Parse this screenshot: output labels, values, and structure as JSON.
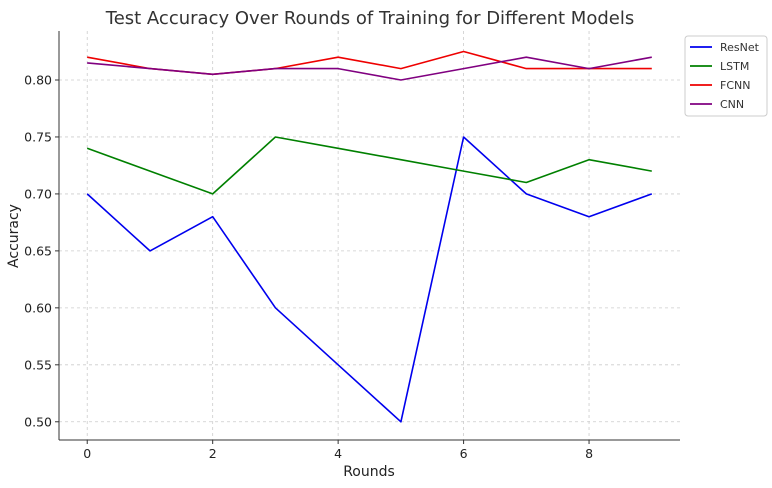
{
  "chart_data": {
    "type": "line",
    "title": "Test Accuracy Over Rounds of Training for Different Models",
    "xlabel": "Rounds",
    "ylabel": "Accuracy",
    "x": [
      0,
      1,
      2,
      3,
      4,
      5,
      6,
      7,
      8,
      9
    ],
    "xlim": [
      -0.45,
      9.45
    ],
    "ylim": [
      0.484,
      0.843
    ],
    "xticks": [
      0,
      2,
      4,
      6,
      8
    ],
    "yticks": [
      0.5,
      0.55,
      0.6,
      0.65,
      0.7,
      0.75,
      0.8
    ],
    "xtick_labels": [
      "0",
      "2",
      "4",
      "6",
      "8"
    ],
    "ytick_labels": [
      "0.50",
      "0.55",
      "0.60",
      "0.65",
      "0.70",
      "0.75",
      "0.80"
    ],
    "grid": true,
    "legend_position": "top-right-outside",
    "series": [
      {
        "name": "ResNet",
        "color": "#0000ee",
        "values": [
          0.7,
          0.65,
          0.68,
          0.6,
          0.55,
          0.5,
          0.75,
          0.7,
          0.68,
          0.7
        ]
      },
      {
        "name": "LSTM",
        "color": "#008000",
        "values": [
          0.74,
          0.72,
          0.7,
          0.75,
          0.74,
          0.73,
          0.72,
          0.71,
          0.73,
          0.72
        ]
      },
      {
        "name": "FCNN",
        "color": "#ee0000",
        "values": [
          0.82,
          0.81,
          0.805,
          0.81,
          0.82,
          0.81,
          0.825,
          0.81,
          0.81,
          0.81
        ]
      },
      {
        "name": "CNN",
        "color": "#800080",
        "values": [
          0.815,
          0.81,
          0.805,
          0.81,
          0.81,
          0.8,
          0.81,
          0.82,
          0.81,
          0.82
        ]
      }
    ]
  }
}
